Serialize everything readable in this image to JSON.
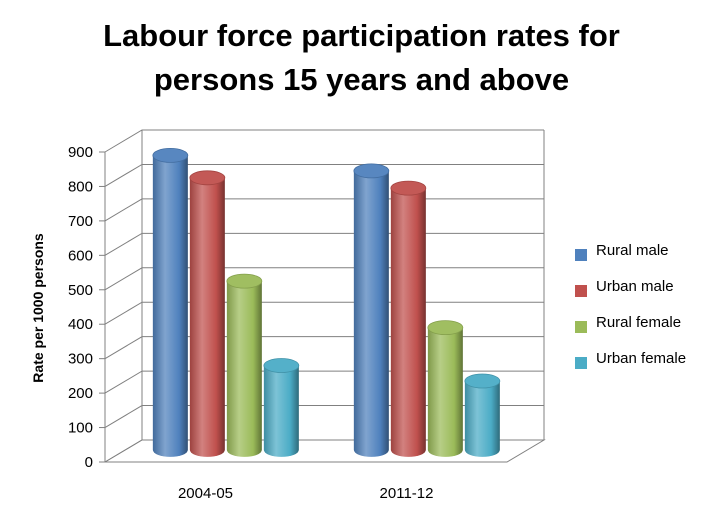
{
  "chart_data": {
    "type": "bar",
    "title_lines": [
      "Labour force participation rates for",
      "persons 15 years and above"
    ],
    "ylabel": "Rate per 1000 persons",
    "xlabel": "",
    "categories": [
      "2004-05",
      "2011-12"
    ],
    "series": [
      {
        "name": "Rural male",
        "values": [
          855,
          810
        ],
        "color": "#4f81bd"
      },
      {
        "name": "Urban male",
        "values": [
          790,
          760
        ],
        "color": "#c0504d"
      },
      {
        "name": "Rural female",
        "values": [
          490,
          355
        ],
        "color": "#9bbb59"
      },
      {
        "name": "Urban female",
        "values": [
          245,
          200
        ],
        "color": "#4bacc6"
      }
    ],
    "yticks": [
      "0",
      "100",
      "200",
      "300",
      "400",
      "500",
      "600",
      "700",
      "800",
      "900"
    ],
    "ylim": [
      0,
      900
    ],
    "grid": true,
    "legend_position": "right",
    "style": "3d-cylinder"
  }
}
